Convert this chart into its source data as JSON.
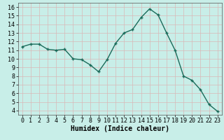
{
  "x": [
    0,
    1,
    2,
    3,
    4,
    5,
    6,
    7,
    8,
    9,
    10,
    11,
    12,
    13,
    14,
    15,
    16,
    17,
    18,
    19,
    20,
    21,
    22,
    23
  ],
  "y": [
    11.4,
    11.7,
    11.7,
    11.1,
    11.0,
    11.1,
    10.0,
    9.9,
    9.3,
    8.5,
    9.9,
    11.8,
    13.0,
    13.4,
    14.8,
    15.8,
    15.1,
    13.0,
    11.0,
    8.0,
    7.5,
    6.4,
    4.7,
    3.9
  ],
  "line_color": "#1a6b5a",
  "marker": "+",
  "marker_size": 3,
  "bg_color": "#c8eee8",
  "grid_color": "#d8b8b8",
  "xlabel": "Humidex (Indice chaleur)",
  "xlim": [
    -0.5,
    23.5
  ],
  "ylim": [
    3.5,
    16.5
  ],
  "yticks": [
    4,
    5,
    6,
    7,
    8,
    9,
    10,
    11,
    12,
    13,
    14,
    15,
    16
  ],
  "xticks": [
    0,
    1,
    2,
    3,
    4,
    5,
    6,
    7,
    8,
    9,
    10,
    11,
    12,
    13,
    14,
    15,
    16,
    17,
    18,
    19,
    20,
    21,
    22,
    23
  ],
  "xlabel_fontsize": 7,
  "tick_fontsize": 6,
  "linewidth": 1.0
}
